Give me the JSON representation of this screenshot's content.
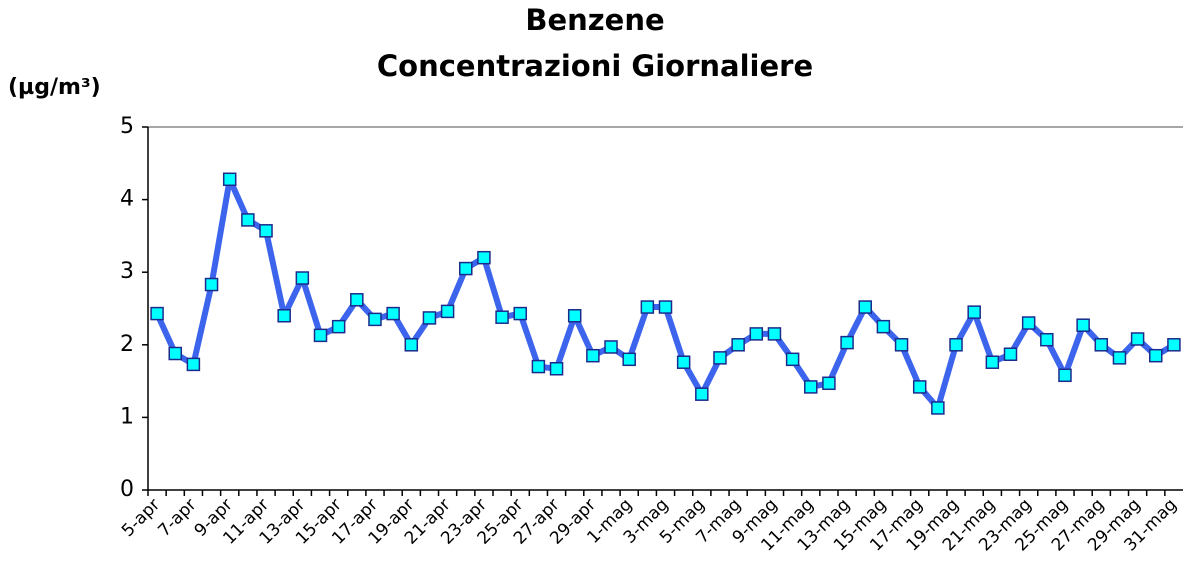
{
  "chart_data": {
    "type": "line",
    "title": [
      "Benzene",
      "Concentrazioni Giornaliere"
    ],
    "y_label": "(µg/m³)",
    "categories": [
      "5-apr",
      null,
      "7-apr",
      null,
      "9-apr",
      null,
      "11-apr",
      null,
      "13-apr",
      null,
      "15-apr",
      null,
      "17-apr",
      null,
      "19-apr",
      null,
      "21-apr",
      null,
      "23-apr",
      null,
      "25-apr",
      null,
      "27-apr",
      null,
      "29-apr",
      null,
      "1-mag",
      null,
      "3-mag",
      null,
      "5-mag",
      null,
      "7-mag",
      null,
      "9-mag",
      null,
      "11-mag",
      null,
      "13-mag",
      null,
      "15-mag",
      null,
      "17-mag",
      null,
      "19-mag",
      null,
      "21-mag",
      null,
      "23-mag",
      null,
      "25-mag",
      null,
      "27-mag",
      null,
      "29-mag",
      null,
      "31-mag"
    ],
    "series": [
      {
        "name": "Benzene",
        "color": "#3c64ec",
        "marker_color": "#00ffff",
        "values": [
          2.43,
          1.88,
          1.73,
          2.83,
          4.28,
          3.72,
          3.57,
          2.4,
          2.92,
          2.13,
          2.25,
          2.62,
          2.35,
          2.43,
          2.0,
          2.37,
          2.46,
          3.05,
          3.2,
          2.38,
          2.43,
          1.7,
          1.67,
          2.4,
          1.85,
          1.97,
          1.8,
          2.52,
          2.52,
          1.76,
          1.32,
          1.82,
          2.0,
          2.15,
          2.15,
          1.8,
          1.42,
          1.47,
          2.03,
          2.52,
          2.25,
          2.0,
          1.42,
          1.13,
          2.0,
          2.45,
          1.76,
          1.87,
          2.3,
          2.07,
          1.58,
          2.27,
          2.0,
          1.82,
          2.08,
          1.85,
          2.0
        ]
      }
    ],
    "ylim": [
      0,
      5
    ],
    "yticks": [
      0,
      1,
      2,
      3,
      4,
      5
    ],
    "grid": false
  }
}
